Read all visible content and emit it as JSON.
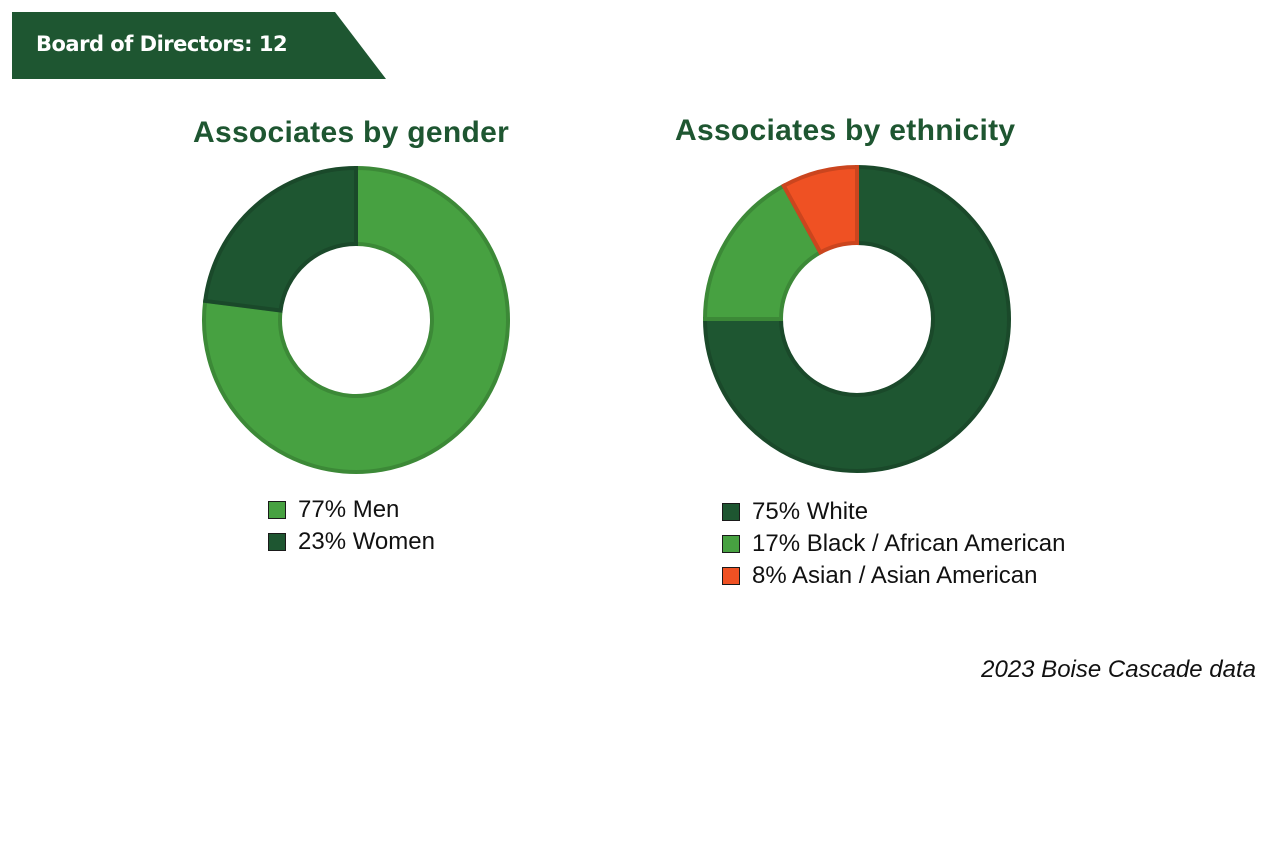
{
  "banner": {
    "text": "Board of Directors: 12",
    "color": "#1e5631"
  },
  "footer": {
    "source": "2023 Boise Cascade data"
  },
  "colors": {
    "dark_green": "#1e5631",
    "light_green": "#47a141",
    "orange": "#ef5123"
  },
  "chart_data": [
    {
      "type": "pie",
      "donut": true,
      "title": "Associates by gender",
      "categories": [
        "Men",
        "Women"
      ],
      "values": [
        77,
        23
      ],
      "colors": [
        "#47a141",
        "#1e5631"
      ],
      "legend": [
        "77% Men",
        "23% Women"
      ],
      "legend_colors": [
        "#47a141",
        "#1e5631"
      ],
      "legend_position": "bottom"
    },
    {
      "type": "pie",
      "donut": true,
      "title": "Associates by ethnicity",
      "categories": [
        "White",
        "Black / African American",
        "Asian / Asian American"
      ],
      "values": [
        75,
        17,
        8
      ],
      "colors": [
        "#1e5631",
        "#47a141",
        "#ef5123"
      ],
      "legend": [
        "75% White",
        "17% Black / African American",
        "8% Asian / Asian American"
      ],
      "legend_colors": [
        "#1e5631",
        "#47a141",
        "#ef5123"
      ],
      "legend_position": "bottom"
    }
  ]
}
